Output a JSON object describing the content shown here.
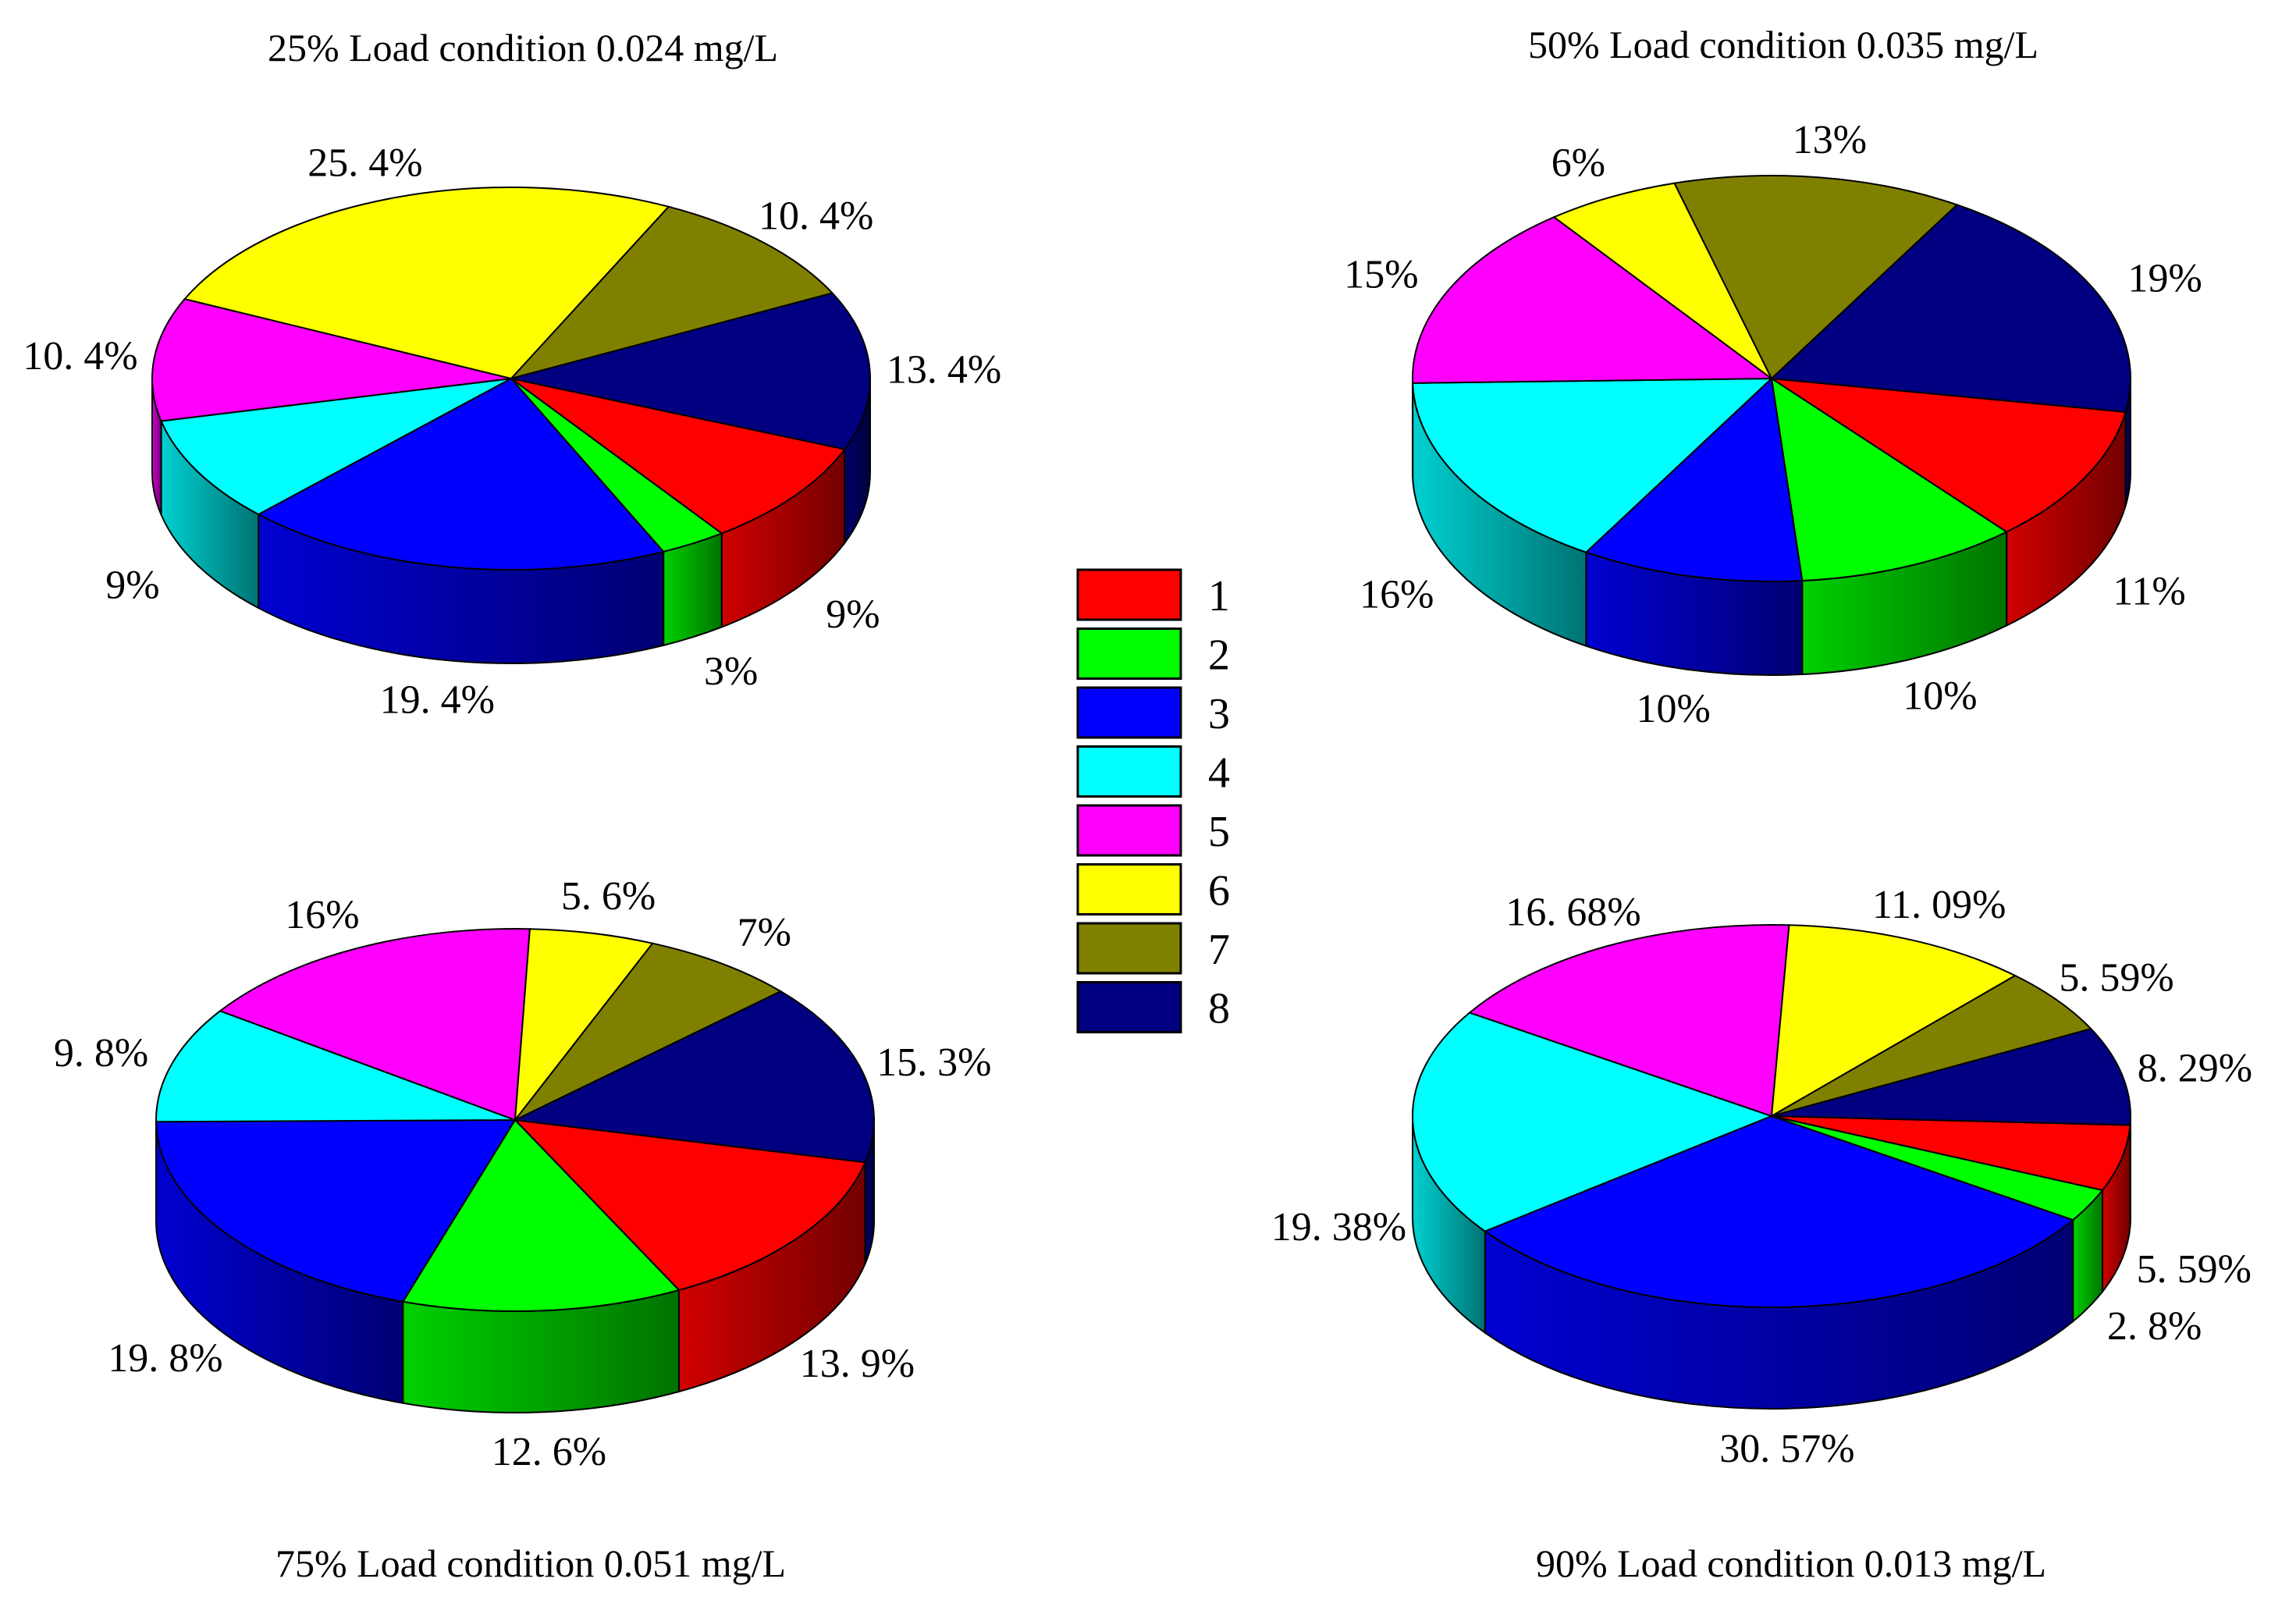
{
  "chart_data": [
    {
      "type": "pie",
      "title": "25% Load condition 0.024 mg/L",
      "categories": [
        "1",
        "2",
        "3",
        "4",
        "5",
        "6",
        "7",
        "8"
      ],
      "values": [
        9,
        3,
        19.4,
        9,
        10.4,
        25.4,
        10.4,
        13.4
      ],
      "labels": [
        "9%",
        "3%",
        "19. 4%",
        "9%",
        "10. 4%",
        "25. 4%",
        "10. 4%",
        "13. 4%"
      ]
    },
    {
      "type": "pie",
      "title": "50% Load condition 0.035 mg/L",
      "categories": [
        "1",
        "2",
        "3",
        "4",
        "5",
        "6",
        "7",
        "8"
      ],
      "values": [
        11,
        10,
        10,
        16,
        15,
        6,
        13,
        19
      ],
      "labels": [
        "11%",
        "10%",
        "10%",
        "16%",
        "15%",
        "6%",
        "13%",
        "19%"
      ]
    },
    {
      "type": "pie",
      "title": "75% Load condition 0.051 mg/L",
      "categories": [
        "1",
        "2",
        "3",
        "4",
        "5",
        "6",
        "7",
        "8"
      ],
      "values": [
        13.9,
        12.6,
        19.8,
        9.8,
        16,
        5.6,
        7,
        15.3
      ],
      "labels": [
        "13. 9%",
        "12. 6%",
        "19. 8%",
        "9. 8%",
        "16%",
        "5. 6%",
        "7%",
        "15. 3%"
      ]
    },
    {
      "type": "pie",
      "title": "90% Load condition 0.013 mg/L",
      "categories": [
        "1",
        "2",
        "3",
        "4",
        "5",
        "6",
        "7",
        "8"
      ],
      "values": [
        5.59,
        2.8,
        30.57,
        19.38,
        16.68,
        11.09,
        5.59,
        8.29
      ],
      "labels": [
        "5. 59%",
        "2. 8%",
        "30. 57%",
        "19. 38%",
        "16. 68%",
        "11. 09%",
        "5. 59%",
        "8. 29%"
      ]
    }
  ],
  "legend": {
    "entries": [
      "1",
      "2",
      "3",
      "4",
      "5",
      "6",
      "7",
      "8"
    ]
  },
  "colors": [
    "#ff0000",
    "#00ff00",
    "#0000ff",
    "#00ffff",
    "#ff00ff",
    "#ffff00",
    "#808000",
    "#000080"
  ]
}
